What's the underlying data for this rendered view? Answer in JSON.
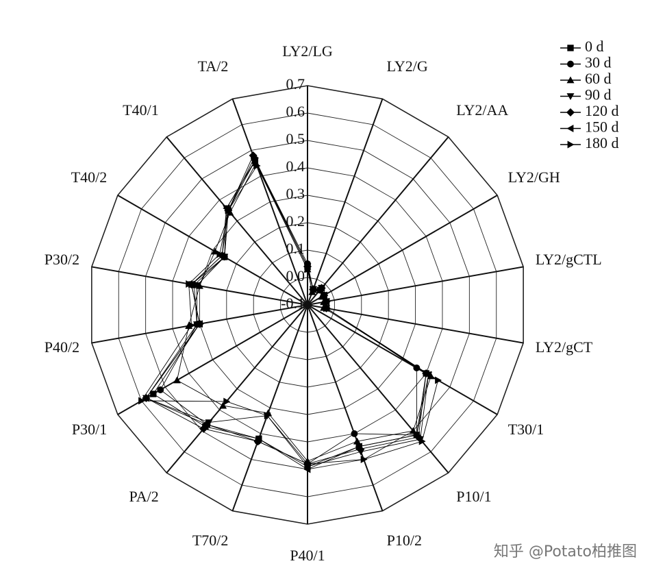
{
  "chart_data": {
    "type": "radar",
    "categories": [
      "LY2/LG",
      "LY2/G",
      "LY2/AA",
      "LY2/GH",
      "LY2/gCTL",
      "LY2/gCT",
      "T30/1",
      "P10/1",
      "P10/2",
      "P40/1",
      "T70/2",
      "PA/2",
      "P30/1",
      "P40/2",
      "P30/2",
      "T40/2",
      "T40/1",
      "TA/2"
    ],
    "ylim": [
      -0.1,
      0.7
    ],
    "yticks": [
      {
        "value": -0.1,
        "label": "-0.1"
      },
      {
        "value": 0.0,
        "label": "0.0"
      },
      0.1,
      0.2,
      0.3,
      0.4,
      0.5,
      0.6,
      0.7
    ],
    "grid": true,
    "legend": "top-right",
    "series": [
      {
        "name": "0 d",
        "color": "#000000",
        "marker": "square",
        "values": [
          0.04,
          -0.04,
          -0.02,
          -0.03,
          -0.03,
          -0.03,
          0.4,
          0.52,
          0.45,
          0.49,
          0.42,
          0.48,
          0.55,
          0.3,
          0.33,
          0.25,
          0.35,
          0.46
        ]
      },
      {
        "name": "30 d",
        "color": "#000000",
        "marker": "circle",
        "values": [
          0.05,
          -0.04,
          -0.03,
          -0.03,
          -0.03,
          -0.03,
          0.36,
          0.52,
          0.4,
          0.48,
          0.43,
          0.47,
          0.52,
          0.31,
          0.32,
          0.25,
          0.35,
          0.47
        ]
      },
      {
        "name": "60 d",
        "color": "#000000",
        "marker": "triangle-up",
        "values": [
          0.03,
          -0.05,
          -0.03,
          -0.04,
          -0.04,
          -0.04,
          0.42,
          0.5,
          0.43,
          0.47,
          0.32,
          0.38,
          0.45,
          0.34,
          0.3,
          0.29,
          0.34,
          0.45
        ]
      },
      {
        "name": "90 d",
        "color": "#000000",
        "marker": "triangle-down",
        "values": [
          0.04,
          -0.04,
          -0.02,
          -0.03,
          -0.03,
          -0.03,
          0.41,
          0.54,
          0.47,
          0.49,
          0.33,
          0.46,
          0.58,
          0.31,
          0.31,
          0.25,
          0.36,
          0.46
        ]
      },
      {
        "name": "120 d",
        "color": "#000000",
        "marker": "diamond",
        "values": [
          0.04,
          -0.04,
          -0.02,
          -0.03,
          -0.03,
          -0.03,
          0.4,
          0.53,
          0.46,
          0.48,
          0.43,
          0.49,
          0.58,
          0.3,
          0.33,
          0.26,
          0.35,
          0.48
        ]
      },
      {
        "name": "150 d",
        "color": "#000000",
        "marker": "triangle-left",
        "values": [
          0.04,
          -0.04,
          -0.03,
          -0.03,
          -0.03,
          -0.03,
          0.41,
          0.52,
          0.45,
          0.5,
          0.42,
          0.47,
          0.58,
          0.3,
          0.33,
          0.26,
          0.36,
          0.46
        ]
      },
      {
        "name": "180 d",
        "color": "#000000",
        "marker": "triangle-right",
        "values": [
          0.03,
          -0.04,
          -0.03,
          -0.03,
          -0.03,
          -0.03,
          0.45,
          0.55,
          0.5,
          0.48,
          0.33,
          0.36,
          0.6,
          0.33,
          0.34,
          0.27,
          0.35,
          0.44
        ]
      }
    ]
  },
  "watermark": "知乎 @Potato柏推图"
}
